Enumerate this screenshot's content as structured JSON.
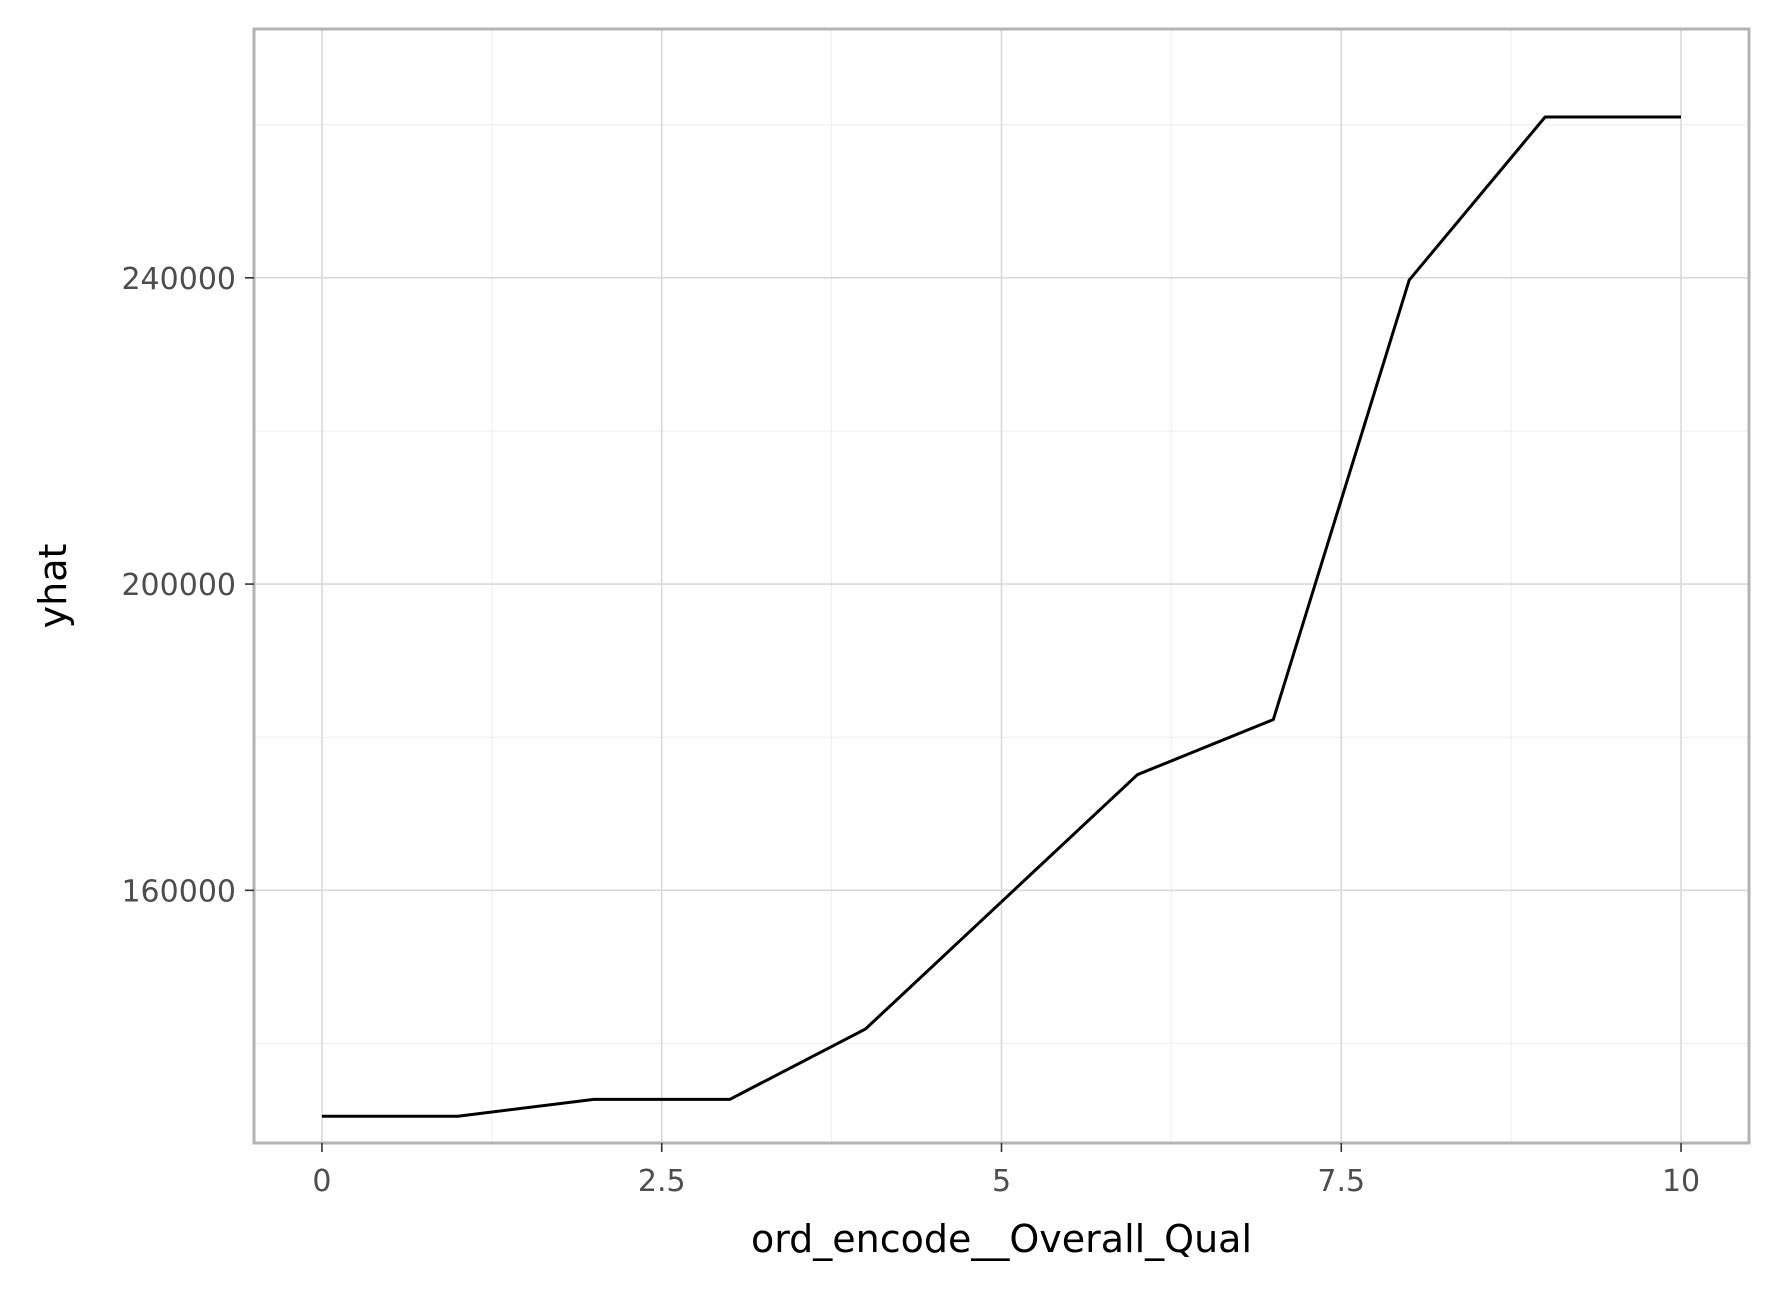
{
  "chart_data": {
    "type": "line",
    "title": "",
    "xlabel": "ord_encode__Overall_Qual",
    "ylabel": "yhat",
    "xlim": [
      -0.5,
      10.5
    ],
    "ylim": [
      127000,
      272500
    ],
    "x_ticks": [
      0,
      2.5,
      5,
      7.5,
      10
    ],
    "x_tick_labels": [
      "0",
      "2.5",
      "5",
      "7.5",
      "10"
    ],
    "y_ticks": [
      160000,
      200000,
      240000
    ],
    "y_tick_labels": [
      "160000",
      "200000",
      "240000"
    ],
    "x_minor_ticks": [
      1.25,
      3.75,
      6.25,
      8.75
    ],
    "y_minor_ticks": [
      140000,
      180000,
      220000,
      260000
    ],
    "grid": true,
    "legend": "none",
    "series": [
      {
        "x": [
          0,
          1,
          2,
          3,
          4,
          5,
          6,
          7,
          8,
          9,
          10
        ],
        "y": [
          130500,
          130500,
          132700,
          132700,
          141900,
          158500,
          175100,
          182300,
          239700,
          261000,
          261000
        ],
        "color": "#000000"
      }
    ],
    "colors": {
      "line": "#000000",
      "panel_border": "#b3b3b3",
      "grid_major": "#d9d9d9",
      "grid_minor": "#eeeeee",
      "tick_label": "#4d4d4d",
      "axis_title": "#000000"
    }
  }
}
